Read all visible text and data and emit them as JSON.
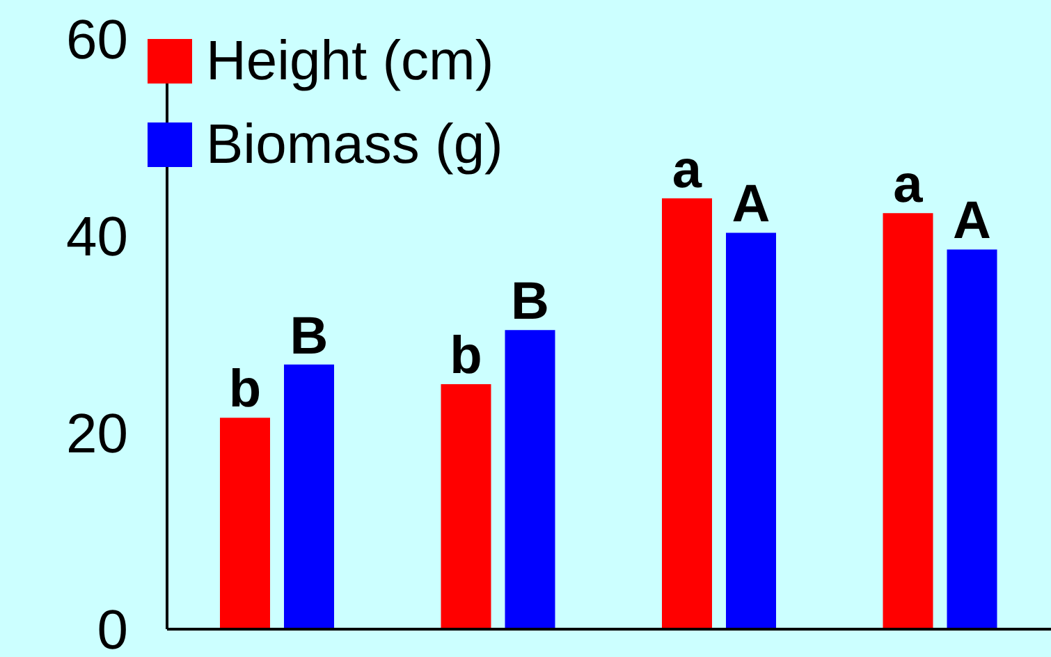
{
  "chart_data": {
    "type": "bar",
    "categories": [
      null,
      null,
      null,
      null
    ],
    "series": [
      {
        "name": "Height (cm)",
        "color": "#ff0000",
        "values": [
          21.5,
          24.9,
          43.8,
          42.3
        ],
        "value_labels": [
          "b",
          "b",
          "a",
          "a"
        ]
      },
      {
        "name": "Biomass (g)",
        "color": "#0000ff",
        "values": [
          26.9,
          30.4,
          40.3,
          38.6
        ],
        "value_labels": [
          "B",
          "B",
          "A",
          "A"
        ]
      }
    ],
    "ylim": [
      0,
      60
    ],
    "yticks": [
      0,
      20,
      40,
      60
    ],
    "tick_labels": "y",
    "grid": false,
    "legend": "top left"
  }
}
